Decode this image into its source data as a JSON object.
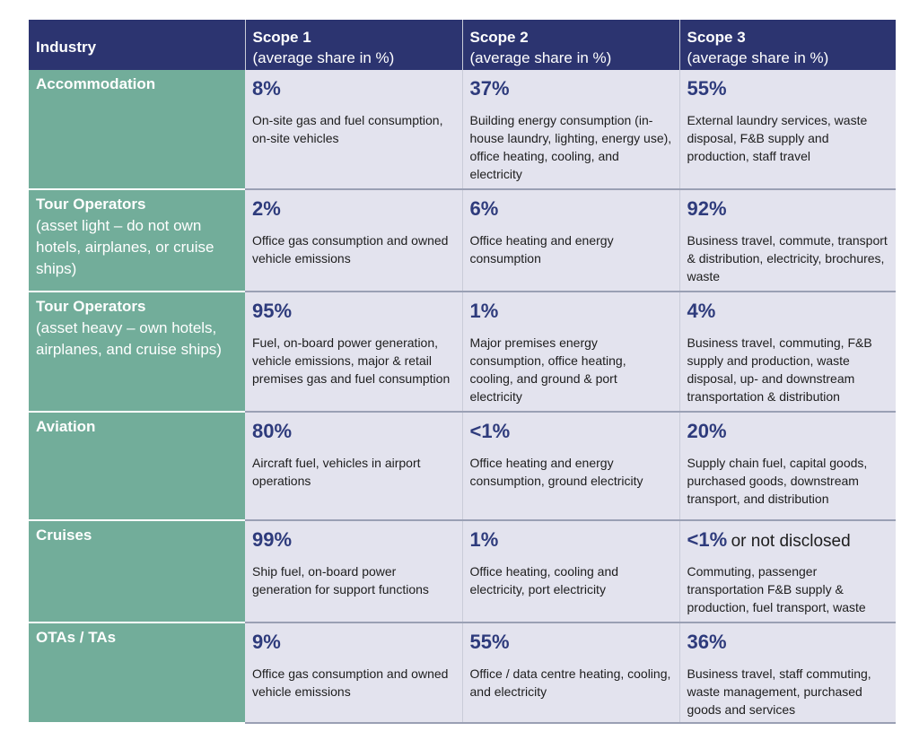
{
  "header": {
    "industry": "Industry",
    "scopes": [
      {
        "title": "Scope 1",
        "subtitle": "(average share in %)"
      },
      {
        "title": "Scope 2",
        "subtitle": "(average share in %)"
      },
      {
        "title": "Scope 3",
        "subtitle": "(average share in %)"
      }
    ]
  },
  "rows": [
    {
      "industry": "Accommodation",
      "note": "",
      "cells": [
        {
          "pct": "8%",
          "extra": "",
          "desc": "On-site gas and fuel consumption, on-site vehicles"
        },
        {
          "pct": "37%",
          "extra": "",
          "desc": "Building energy consumption (in-house laundry, lighting, energy use), office heating, cooling, and electricity"
        },
        {
          "pct": "55%",
          "extra": "",
          "desc": "External laundry services, waste disposal, F&B supply and production, staff travel"
        }
      ]
    },
    {
      "industry": "Tour Operators",
      "note": "(asset light – do not own hotels, airplanes, or cruise ships)",
      "cells": [
        {
          "pct": "2%",
          "extra": "",
          "desc": "Office gas consumption and owned vehicle emissions"
        },
        {
          "pct": "6%",
          "extra": "",
          "desc": "Office heating and energy consumption"
        },
        {
          "pct": "92%",
          "extra": "",
          "desc": "Business travel, commute, transport & distribution, electricity, brochures, waste"
        }
      ]
    },
    {
      "industry": "Tour Operators",
      "note": "(asset heavy – own hotels, airplanes, and cruise ships)",
      "cells": [
        {
          "pct": "95%",
          "extra": "",
          "desc": "Fuel, on-board power generation, vehicle emissions, major & retail premises gas and fuel consumption"
        },
        {
          "pct": "1%",
          "extra": "",
          "desc": "Major premises energy consumption, office heating, cooling, and ground & port electricity"
        },
        {
          "pct": "4%",
          "extra": "",
          "desc": "Business travel, commuting, F&B supply and production, waste disposal, up- and downstream transportation & distribution"
        }
      ]
    },
    {
      "industry": "Aviation",
      "note": "",
      "cells": [
        {
          "pct": "80%",
          "extra": "",
          "desc": "Aircraft fuel, vehicles in airport operations"
        },
        {
          "pct": "<1%",
          "extra": "",
          "desc": "Office heating and energy consumption, ground electricity"
        },
        {
          "pct": "20%",
          "extra": "",
          "desc": "Supply chain fuel, capital goods, purchased goods, downstream transport, and distribution"
        }
      ]
    },
    {
      "industry": "Cruises",
      "note": "",
      "cells": [
        {
          "pct": "99%",
          "extra": "",
          "desc": "Ship fuel, on-board power generation for support functions"
        },
        {
          "pct": "1%",
          "extra": "",
          "desc": "Office heating, cooling and electricity, port electricity"
        },
        {
          "pct": "<1%",
          "extra": "or not disclosed",
          "desc": "Commuting, passenger transportation F&B supply & production, fuel transport, waste"
        }
      ]
    },
    {
      "industry": "OTAs / TAs",
      "note": "",
      "cells": [
        {
          "pct": "9%",
          "extra": "",
          "desc": "Office gas consumption and owned vehicle emissions"
        },
        {
          "pct": "55%",
          "extra": "",
          "desc": "Office / data centre heating, cooling, and electricity"
        },
        {
          "pct": "36%",
          "extra": "",
          "desc": "Business travel, staff commuting, waste management, purchased goods and services"
        }
      ]
    }
  ],
  "colors": {
    "header_bg": "#2c3470",
    "industry_bg": "#72ad9a",
    "cell_bg": "#e3e3ee",
    "percent_text": "#2e3b7c"
  }
}
